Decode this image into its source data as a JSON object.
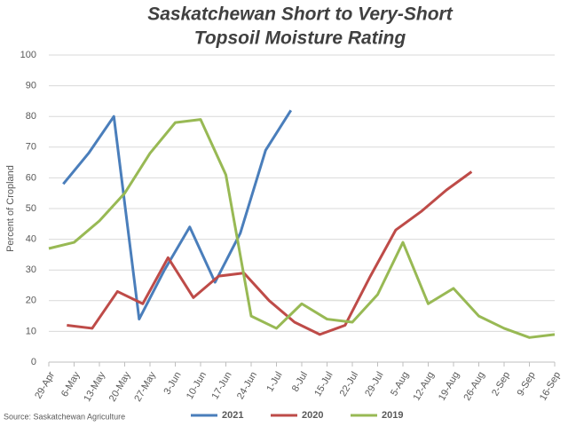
{
  "chart_data": {
    "type": "line",
    "title": [
      "Saskatchewan Short to Very-Short",
      "Topsoil Moisture Rating"
    ],
    "y_label": "Percent of Cropland",
    "source": "Source: Saskatchewan Agriculture",
    "xlim": [
      119,
      259
    ],
    "xticks": [
      {
        "value": 119,
        "label": "29-Apr"
      },
      {
        "value": 126,
        "label": "6-May"
      },
      {
        "value": 133,
        "label": "13-May"
      },
      {
        "value": 140,
        "label": "20-May"
      },
      {
        "value": 147,
        "label": "27-May"
      },
      {
        "value": 154,
        "label": "3-Jun"
      },
      {
        "value": 161,
        "label": "10-Jun"
      },
      {
        "value": 168,
        "label": "17-Jun"
      },
      {
        "value": 175,
        "label": "24-Jun"
      },
      {
        "value": 182,
        "label": "1-Jul"
      },
      {
        "value": 189,
        "label": "8-Jul"
      },
      {
        "value": 196,
        "label": "15-Jul"
      },
      {
        "value": 203,
        "label": "22-Jul"
      },
      {
        "value": 210,
        "label": "29-Jul"
      },
      {
        "value": 217,
        "label": "5-Aug"
      },
      {
        "value": 224,
        "label": "12-Aug"
      },
      {
        "value": 231,
        "label": "19-Aug"
      },
      {
        "value": 238,
        "label": "26-Aug"
      },
      {
        "value": 245,
        "label": "2-Sep"
      },
      {
        "value": 252,
        "label": "9-Sep"
      },
      {
        "value": 259,
        "label": "16-Sep"
      }
    ],
    "ylim": [
      0,
      100
    ],
    "yticks": [
      0,
      10,
      20,
      30,
      40,
      50,
      60,
      70,
      80,
      90,
      100
    ],
    "grid": true,
    "series": [
      {
        "name": "2021",
        "color": "#4a7ebb",
        "x": [
          123,
          130,
          137,
          144,
          151,
          158,
          165,
          172,
          179,
          186
        ],
        "values": [
          58,
          68,
          80,
          14,
          30,
          44,
          26,
          42,
          69,
          82
        ]
      },
      {
        "name": "2020",
        "color": "#be4b48",
        "x": [
          124,
          131,
          138,
          145,
          152,
          159,
          166,
          173,
          180,
          187,
          194,
          201,
          208,
          215,
          222,
          229,
          236
        ],
        "values": [
          12,
          11,
          23,
          19,
          34,
          21,
          28,
          29,
          20,
          13,
          9,
          12,
          28,
          43,
          49,
          56,
          62
        ]
      },
      {
        "name": "2019",
        "color": "#98b954",
        "x": [
          119,
          126,
          133,
          140,
          147,
          154,
          161,
          168,
          175,
          182,
          189,
          196,
          203,
          210,
          217,
          224,
          231,
          238,
          245,
          252,
          259
        ],
        "values": [
          37,
          39,
          46,
          55,
          68,
          78,
          79,
          61,
          15,
          11,
          19,
          14,
          13,
          22,
          39,
          19,
          24,
          15,
          11,
          8,
          9
        ]
      }
    ]
  }
}
